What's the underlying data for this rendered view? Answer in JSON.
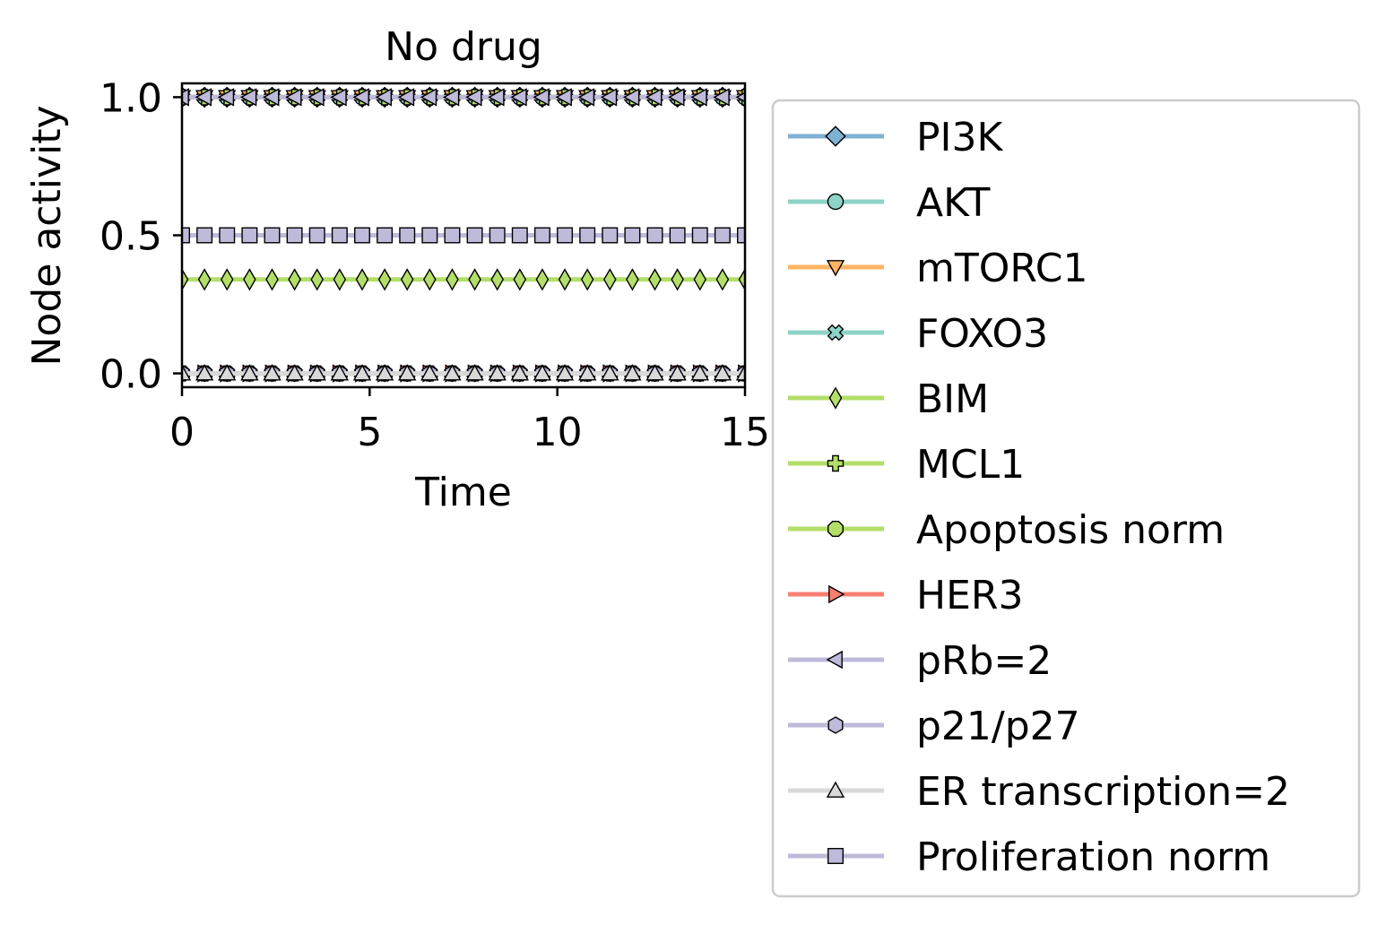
{
  "chart_data": {
    "type": "line",
    "title": "No drug",
    "xlabel": "Time",
    "ylabel": "Node activity",
    "xlim": [
      0,
      15
    ],
    "ylim": [
      -0.05,
      1.05
    ],
    "xticks": [
      0,
      5,
      10,
      15
    ],
    "xtick_labels": [
      "0",
      "5",
      "10",
      "15"
    ],
    "yticks": [
      0.0,
      0.5,
      1.0
    ],
    "ytick_labels": [
      "0.0",
      "0.5",
      "1.0"
    ],
    "grid": false,
    "legend_position": "outside-right",
    "x": [
      0,
      0.6,
      1.2,
      1.8,
      2.4,
      3.0,
      3.6,
      4.2,
      4.8,
      5.4,
      6.0,
      6.6,
      7.2,
      7.8,
      8.4,
      9.0,
      9.6,
      10.2,
      10.8,
      11.4,
      12.0,
      12.6,
      13.2,
      13.8,
      14.4,
      15.0
    ],
    "series": [
      {
        "name": "PI3K",
        "value": 1.0,
        "color": "#80b1d3",
        "marker": "diamond"
      },
      {
        "name": "AKT",
        "value": 1.0,
        "color": "#8dd3c7",
        "marker": "circle"
      },
      {
        "name": "mTORC1",
        "value": 1.0,
        "color": "#fdb462",
        "marker": "triangle-down"
      },
      {
        "name": "FOXO3",
        "value": 0.0,
        "color": "#8dd3c7",
        "marker": "x-filled"
      },
      {
        "name": "BIM",
        "value": 0.34,
        "color": "#b3de69",
        "marker": "thin-diamond"
      },
      {
        "name": "MCL1",
        "value": 1.0,
        "color": "#b3de69",
        "marker": "plus-filled"
      },
      {
        "name": "Apoptosis norm",
        "value": 0.0,
        "color": "#b3de69",
        "marker": "octagon"
      },
      {
        "name": "HER3",
        "value": 0.0,
        "color": "#fb8072",
        "marker": "triangle-right"
      },
      {
        "name": "pRb=2",
        "value": 1.0,
        "color": "#bebada",
        "marker": "triangle-left"
      },
      {
        "name": "p21/p27",
        "value": 0.0,
        "color": "#bebada",
        "marker": "hexagon"
      },
      {
        "name": "ER transcription=2",
        "value": 0.0,
        "color": "#d9d9d9",
        "marker": "triangle-up"
      },
      {
        "name": "Proliferation norm",
        "value": 0.5,
        "color": "#bebada",
        "marker": "square"
      }
    ]
  }
}
